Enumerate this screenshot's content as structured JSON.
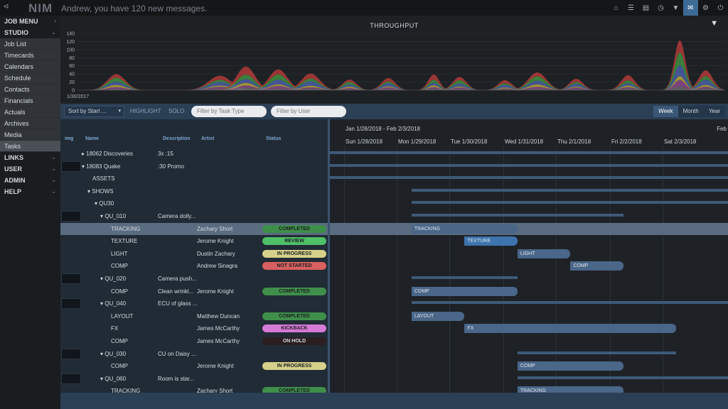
{
  "topbar": {
    "logo": "NIM",
    "collapse": "⊲",
    "greeting": "Andrew, you have 120 new messages.",
    "icons": [
      {
        "name": "home-icon",
        "glyph": "⌂"
      },
      {
        "name": "list-icon",
        "glyph": "☰"
      },
      {
        "name": "notes-icon",
        "glyph": "▤"
      },
      {
        "name": "clock-icon",
        "glyph": "◷"
      },
      {
        "name": "bookmark-icon",
        "glyph": "▼"
      },
      {
        "name": "mail-icon",
        "glyph": "✉"
      },
      {
        "name": "gear-icon",
        "glyph": "⚙"
      },
      {
        "name": "power-icon",
        "glyph": "⏻"
      }
    ]
  },
  "sidebar": {
    "sections_top": [
      {
        "label": "JOB MENU",
        "chev": "›"
      },
      {
        "label": "STUDIO",
        "chev": "⌄"
      }
    ],
    "items": [
      "Job List",
      "Timecards",
      "Calendars",
      "Schedule",
      "Contacts",
      "Financials",
      "Actuals",
      "Archives",
      "Media",
      "Tasks"
    ],
    "active": "Tasks",
    "sections_bottom": [
      {
        "label": "LINKS",
        "chev": "⌄"
      },
      {
        "label": "USER",
        "chev": "⌄"
      },
      {
        "label": "ADMIN",
        "chev": "⌄"
      },
      {
        "label": "HELP",
        "chev": "⌄"
      }
    ]
  },
  "chart_data": {
    "type": "area",
    "title": "THROUGHPUT",
    "ylim": [
      0,
      140
    ],
    "yticks": [
      0,
      20,
      40,
      60,
      80,
      100,
      120,
      140
    ],
    "x_start_label": "1/30/2017",
    "colors": [
      "#b23a3a",
      "#3f8f3f",
      "#4a5fa8",
      "#b8a83a",
      "#8a4a8a",
      "#6a6a6a"
    ],
    "peaks": [
      {
        "x": 0.06,
        "h": 45,
        "w": 0.02
      },
      {
        "x": 0.22,
        "h": 38,
        "w": 0.025
      },
      {
        "x": 0.26,
        "h": 60,
        "w": 0.02
      },
      {
        "x": 0.31,
        "h": 55,
        "w": 0.02
      },
      {
        "x": 0.36,
        "h": 42,
        "w": 0.02
      },
      {
        "x": 0.42,
        "h": 30,
        "w": 0.015
      },
      {
        "x": 0.48,
        "h": 32,
        "w": 0.015
      },
      {
        "x": 0.55,
        "h": 40,
        "w": 0.012
      },
      {
        "x": 0.59,
        "h": 35,
        "w": 0.015
      },
      {
        "x": 0.66,
        "h": 25,
        "w": 0.015
      },
      {
        "x": 0.71,
        "h": 50,
        "w": 0.02
      },
      {
        "x": 0.77,
        "h": 30,
        "w": 0.015
      },
      {
        "x": 0.85,
        "h": 38,
        "w": 0.015
      },
      {
        "x": 0.93,
        "h": 132,
        "w": 0.012
      },
      {
        "x": 0.97,
        "h": 50,
        "w": 0.015
      }
    ]
  },
  "toolbar": {
    "sort_label": "Sort by Start ...",
    "sort_arrow": "▾",
    "highlight": "HIGHLIGHT",
    "solo": "SOLO",
    "filter_task_placeholder": "Filter by Task Type",
    "filter_user_placeholder": "Filter by User",
    "views": [
      "Week",
      "Month",
      "Year"
    ],
    "active_view": "Week"
  },
  "grid": {
    "columns": {
      "img": "img",
      "name": "Name",
      "description": "Description",
      "artist": "Artist",
      "status": "Status"
    },
    "status_colors": {
      "COMPLETED": "#3f8f4a",
      "REVIEW": "#4fbf68",
      "IN PROGRESS": "#d6d18a",
      "NOT STARTED": "#d96060",
      "KICKBACK": "#d57ad6",
      "ON HOLD": "#2a1e20"
    },
    "rows": [
      {
        "name": "▸ 18062 Discoveries",
        "indent": 30,
        "desc": "3x :15",
        "artist": "",
        "status": "",
        "thumb": false
      },
      {
        "name": "▾ 18083 Quake",
        "indent": 30,
        "desc": ":30 Promo",
        "artist": "",
        "status": "",
        "thumb": true
      },
      {
        "name": "ASSETS",
        "indent": 45,
        "desc": "",
        "artist": "",
        "status": "",
        "thumb": false
      },
      {
        "name": "▾ SHOWS",
        "indent": 38,
        "desc": "",
        "artist": "",
        "status": "",
        "thumb": false
      },
      {
        "name": "▾ QU30",
        "indent": 48,
        "desc": "",
        "artist": "",
        "status": "",
        "thumb": false
      },
      {
        "name": "▾ QU_010",
        "indent": 56,
        "desc": "Camera dolly...",
        "artist": "",
        "status": "",
        "thumb": true
      },
      {
        "name": "TRACKING",
        "indent": 71,
        "desc": "",
        "artist": "Zachary Short",
        "status": "COMPLETED",
        "thumb": false,
        "selected": true
      },
      {
        "name": "TEXTURE",
        "indent": 71,
        "desc": "",
        "artist": "Jerome Knight",
        "status": "REVIEW",
        "thumb": false
      },
      {
        "name": "LIGHT",
        "indent": 71,
        "desc": "",
        "artist": "Dustin Zachary",
        "status": "IN PROGRESS",
        "thumb": false
      },
      {
        "name": "COMP",
        "indent": 71,
        "desc": "",
        "artist": "Andrew Sinagra",
        "status": "NOT STARTED",
        "thumb": false
      },
      {
        "name": "▾ QU_020",
        "indent": 56,
        "desc": "Camera push...",
        "artist": "",
        "status": "",
        "thumb": true
      },
      {
        "name": "COMP",
        "indent": 71,
        "desc": "Clean wrinkl...",
        "artist": "Jerome Knight",
        "status": "COMPLETED",
        "thumb": false
      },
      {
        "name": "▾ QU_040",
        "indent": 56,
        "desc": "ECU of glass ...",
        "artist": "",
        "status": "",
        "thumb": true
      },
      {
        "name": "LAYOUT",
        "indent": 71,
        "desc": "",
        "artist": "Matthew Duncan",
        "status": "COMPLETED",
        "thumb": false
      },
      {
        "name": "FX",
        "indent": 71,
        "desc": "",
        "artist": "James McCarthy",
        "status": "KICKBACK",
        "thumb": false
      },
      {
        "name": "COMP",
        "indent": 71,
        "desc": "",
        "artist": "James McCarthy",
        "status": "ON HOLD",
        "thumb": false
      },
      {
        "name": "▾ QU_030",
        "indent": 56,
        "desc": "CU on Daisy ...",
        "artist": "",
        "status": "",
        "thumb": true
      },
      {
        "name": "COMP",
        "indent": 71,
        "desc": "",
        "artist": "Jerome Knight",
        "status": "IN PROGRESS",
        "thumb": false
      },
      {
        "name": "▾ QU_060",
        "indent": 56,
        "desc": "Room is star...",
        "artist": "",
        "status": "",
        "thumb": true
      },
      {
        "name": "TRACKING",
        "indent": 71,
        "desc": "",
        "artist": "Zachary Short",
        "status": "COMPLETED",
        "thumb": false
      }
    ]
  },
  "gantt": {
    "range_label": "Jan 1/28/2018 - Feb 2/3/2018",
    "next_label": "Feb",
    "days": [
      "Sun 1/28/2018",
      "Mon 1/29/2018",
      "Tue 1/30/2018",
      "Wed 1/31/2018",
      "Thu 2/1/2018",
      "Fri 2/2/2018",
      "Sat 2/3/2018"
    ],
    "bars": [
      {
        "row": 0,
        "type": "line",
        "start": 0.0,
        "end": 1.0
      },
      {
        "row": 1,
        "type": "line",
        "start": 0.0,
        "end": 1.0
      },
      {
        "row": 2,
        "type": "line",
        "start": 0.0,
        "end": 1.0
      },
      {
        "row": 3,
        "type": "line",
        "start": 1.3,
        "end": 7.5
      },
      {
        "row": 4,
        "type": "line",
        "start": 1.3,
        "end": 7.5
      },
      {
        "row": 5,
        "type": "line",
        "start": 1.3,
        "end": 5.3
      },
      {
        "row": 6,
        "type": "task",
        "label": "TRACKING",
        "start": 1.3,
        "end": 3.3
      },
      {
        "row": 7,
        "type": "task",
        "label": "TEXTURE",
        "start": 2.3,
        "end": 3.3,
        "hl": true
      },
      {
        "row": 8,
        "type": "task",
        "label": "LIGHT",
        "start": 3.3,
        "end": 4.3
      },
      {
        "row": 9,
        "type": "task",
        "label": "COMP",
        "start": 4.3,
        "end": 5.3
      },
      {
        "row": 10,
        "type": "line",
        "start": 1.3,
        "end": 3.3
      },
      {
        "row": 11,
        "type": "task",
        "label": "COMP",
        "start": 1.3,
        "end": 3.3
      },
      {
        "row": 12,
        "type": "line",
        "start": 1.3,
        "end": 7.5
      },
      {
        "row": 13,
        "type": "task",
        "label": "LAYOUT",
        "start": 1.3,
        "end": 2.3
      },
      {
        "row": 14,
        "type": "task",
        "label": "FX",
        "start": 2.3,
        "end": 6.3
      },
      {
        "row": 16,
        "type": "line",
        "start": 3.3,
        "end": 6.3
      },
      {
        "row": 17,
        "type": "task",
        "label": "COMP",
        "start": 3.3,
        "end": 5.3
      },
      {
        "row": 18,
        "type": "line",
        "start": 3.3,
        "end": 7.5
      },
      {
        "row": 19,
        "type": "task",
        "label": "TRACKING",
        "start": 3.3,
        "end": 5.3
      }
    ]
  }
}
